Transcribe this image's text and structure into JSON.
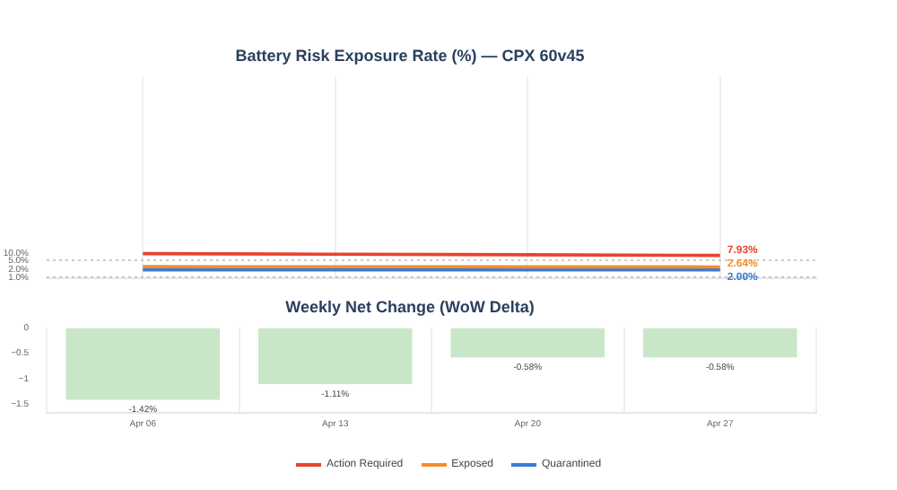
{
  "chart_data": [
    {
      "type": "line",
      "title": "Battery Risk Exposure Rate (%) — CPX 60v45",
      "categories": [
        null,
        null,
        null,
        null
      ],
      "series": [
        {
          "name": "Action Required",
          "color": "#e8432e",
          "values": [
            9.4,
            8.9,
            8.4,
            7.93
          ],
          "value_labels": [
            null,
            null,
            null,
            "7.93%"
          ]
        },
        {
          "name": "Exposed",
          "color": "#f28e2b",
          "values": [
            2.7,
            2.68,
            2.66,
            2.64
          ],
          "value_labels": [
            null,
            null,
            null,
            "2.64%"
          ]
        },
        {
          "name": "Quarantined",
          "color": "#3a7bd5",
          "values": [
            2.0,
            2.0,
            2.0,
            2.0
          ],
          "value_labels": [
            null,
            null,
            null,
            "2.00%"
          ]
        }
      ],
      "log": "y",
      "ylim": [
        0.9,
        200000000
      ],
      "yticks": [
        {
          "value": 1,
          "label": "1.0%"
        },
        {
          "value": 2,
          "label": "2.0%"
        },
        {
          "value": 5,
          "label": "5.0%"
        },
        {
          "value": 10,
          "label": "10.0%"
        }
      ],
      "ref_lines": [
        {
          "axis": "y",
          "value": 5,
          "color": "#bbbbbb",
          "line_style": "dotted"
        },
        {
          "axis": "y",
          "value": 1,
          "color": "#bbbbbb",
          "line_style": "dotted"
        }
      ],
      "grid": "x",
      "tick_labels": "y",
      "legend": "bottom",
      "marker": "none",
      "line_style": "solid"
    },
    {
      "type": "bar",
      "title": "Weekly Net Change (WoW Delta)",
      "categories": [
        "Apr 06",
        "Apr 13",
        "Apr 20",
        "Apr 27"
      ],
      "values": [
        -1.42,
        -1.11,
        -0.58,
        -0.58
      ],
      "color": "#c9e6c9",
      "value_labels": [
        "-1.42%",
        "-1.11%",
        "-0.58%",
        "-0.58%"
      ],
      "ylim": [
        -1.68,
        0
      ],
      "yticks": [
        {
          "value": -1.5,
          "label": "−1.5"
        },
        {
          "value": -1,
          "label": "−1"
        },
        {
          "value": -0.5,
          "label": "−0.5"
        },
        0
      ],
      "grid": "x",
      "legend": false
    }
  ]
}
